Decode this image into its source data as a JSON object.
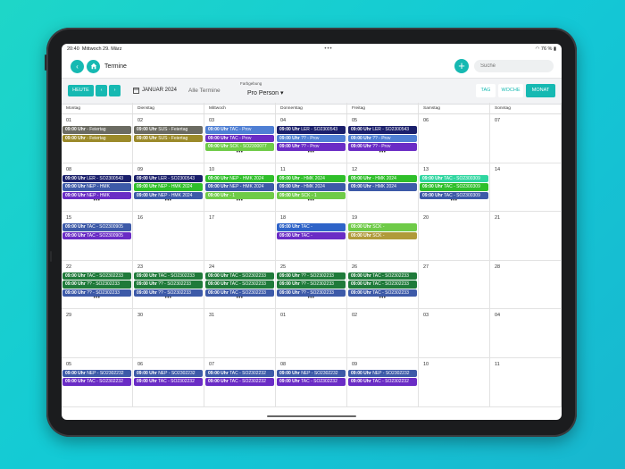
{
  "status": {
    "time": "20:40",
    "date": "Mittwoch 29. März",
    "dots": "•••",
    "battery": "76 %"
  },
  "header": {
    "title": "Termine",
    "search_placeholder": "Suche"
  },
  "toolbar": {
    "today": "HEUTE",
    "prev": "‹",
    "next": "›",
    "month": "JANUAR 2024",
    "all": "Alle Termine",
    "farbgebung_label": "Farbgebung",
    "farbgebung_value": "Pro Person",
    "views": [
      "TAG",
      "WOCHE",
      "MONAT"
    ],
    "active_view": "MONAT"
  },
  "weekdays": [
    "Montag",
    "Dienstag",
    "Mittwoch",
    "Donnerstag",
    "Freitag",
    "Samstag",
    "Sonntag"
  ],
  "colors": {
    "accent": "#16b9b2"
  },
  "weeks": [
    {
      "days": [
        {
          "num": "01",
          "events": [
            {
              "time": "09:00 Uhr",
              "text": "- Feiertag",
              "color": "#6b6b62"
            },
            {
              "time": "09:00 Uhr",
              "text": "- Feiertag",
              "color": "#9b8a2a"
            }
          ]
        },
        {
          "num": "02",
          "events": [
            {
              "time": "09:00 Uhr",
              "text": "SUS - Feiertag",
              "color": "#6b6b62"
            },
            {
              "time": "09:00 Uhr",
              "text": "SUS - Feiertag",
              "color": "#9b8a2a"
            }
          ]
        },
        {
          "num": "03",
          "events": [
            {
              "time": "09:00 Uhr",
              "text": "TAC - Prov",
              "color": "#4f7fd4"
            },
            {
              "time": "09:00 Uhr",
              "text": "TAC - Prov",
              "color": "#6a2cc5"
            },
            {
              "time": "09:00 Uhr",
              "text": "SCK - SO2300077",
              "color": "#6fcb48"
            }
          ],
          "more": "•••"
        },
        {
          "num": "04",
          "events": [
            {
              "time": "09:00 Uhr",
              "text": "LER - SO2300543",
              "color": "#1a1f6b"
            },
            {
              "time": "09:00 Uhr",
              "text": "?? - Prov",
              "color": "#4f7fd4"
            },
            {
              "time": "09:00 Uhr",
              "text": "?? - Prov",
              "color": "#6a2cc5"
            }
          ],
          "more": "•••"
        },
        {
          "num": "05",
          "events": [
            {
              "time": "09:00 Uhr",
              "text": "LER - SO2300543",
              "color": "#1a1f6b"
            },
            {
              "time": "09:00 Uhr",
              "text": "?? - Prov",
              "color": "#4f7fd4"
            },
            {
              "time": "09:00 Uhr",
              "text": "?? - Prov",
              "color": "#6a2cc5"
            }
          ],
          "more": "•••"
        },
        {
          "num": "06",
          "events": []
        },
        {
          "num": "07",
          "events": []
        }
      ]
    },
    {
      "days": [
        {
          "num": "08",
          "events": [
            {
              "time": "09:00 Uhr",
              "text": "LER - SO2300543",
              "color": "#1a1f6b"
            },
            {
              "time": "09:00 Uhr",
              "text": "NEP - HMK",
              "color": "#3d5aa8"
            },
            {
              "time": "09:00 Uhr",
              "text": "NEP - HMK",
              "color": "#6a2cc5"
            }
          ],
          "more": "•••"
        },
        {
          "num": "09",
          "events": [
            {
              "time": "09:00 Uhr",
              "text": "LER - SO2300543",
              "color": "#1a1f6b"
            },
            {
              "time": "09:00 Uhr",
              "text": "NEP - HMK 2024",
              "color": "#2fbf2a"
            },
            {
              "time": "09:00 Uhr",
              "text": "NEP - HMK 2024",
              "color": "#3d5aa8"
            }
          ],
          "more": "•••"
        },
        {
          "num": "10",
          "events": [
            {
              "time": "09:00 Uhr",
              "text": "NEP - HMK 2024",
              "color": "#2fbf2a"
            },
            {
              "time": "09:00 Uhr",
              "text": "NEP - HMK 2024",
              "color": "#3d5aa8"
            },
            {
              "time": "09:00 Uhr",
              "text": "- 1",
              "color": "#6fcb48"
            }
          ],
          "more": "•••"
        },
        {
          "num": "11",
          "events": [
            {
              "time": "09:00 Uhr",
              "text": "- HMK 2024",
              "color": "#2fbf2a"
            },
            {
              "time": "09:00 Uhr",
              "text": "- HMK 2024",
              "color": "#3d5aa8"
            },
            {
              "time": "09:00 Uhr",
              "text": "SCK - 1",
              "color": "#6fcb48"
            }
          ],
          "more": "•••"
        },
        {
          "num": "12",
          "events": [
            {
              "time": "09:00 Uhr",
              "text": "- HMK 2024",
              "color": "#2fbf2a"
            },
            {
              "time": "09:00 Uhr",
              "text": "- HMK 2024",
              "color": "#3d5aa8"
            }
          ]
        },
        {
          "num": "13",
          "events": [
            {
              "time": "09:00 Uhr",
              "text": "TAC - SO2300309",
              "color": "#2fd6a0"
            },
            {
              "time": "09:00 Uhr",
              "text": "TAC - SO2300309",
              "color": "#2fbf2a"
            },
            {
              "time": "09:00 Uhr",
              "text": "TAC - SO2300309",
              "color": "#3d5aa8"
            }
          ],
          "more": "•••"
        },
        {
          "num": "14",
          "events": []
        }
      ]
    },
    {
      "days": [
        {
          "num": "15",
          "events": [
            {
              "time": "09:00 Uhr",
              "text": "TAC - SO2300905",
              "color": "#3d5aa8"
            },
            {
              "time": "09:00 Uhr",
              "text": "TAC - SO2300905",
              "color": "#6a2cc5"
            }
          ]
        },
        {
          "num": "16",
          "events": []
        },
        {
          "num": "17",
          "events": []
        },
        {
          "num": "18",
          "events": [
            {
              "time": "09:00 Uhr",
              "text": "TAC -",
              "color": "#2e63c8"
            },
            {
              "time": "09:00 Uhr",
              "text": "TAC -",
              "color": "#6a2cc5"
            }
          ]
        },
        {
          "num": "19",
          "events": [
            {
              "time": "09:00 Uhr",
              "text": "SCK -",
              "color": "#6fcb48"
            },
            {
              "time": "09:00 Uhr",
              "text": "SCK -",
              "color": "#b09a3a"
            }
          ]
        },
        {
          "num": "20",
          "events": []
        },
        {
          "num": "21",
          "events": []
        }
      ]
    },
    {
      "days": [
        {
          "num": "22",
          "events": [
            {
              "time": "09:00 Uhr",
              "text": "TAC - SO2302233",
              "color": "#1f7a3a"
            },
            {
              "time": "09:00 Uhr",
              "text": "?? - SO2302233",
              "color": "#1f7a3a"
            },
            {
              "time": "09:00 Uhr",
              "text": "?? - SO2302233",
              "color": "#3d5aa8"
            }
          ],
          "more": "•••"
        },
        {
          "num": "23",
          "events": [
            {
              "time": "09:00 Uhr",
              "text": "TAC - SO2302233",
              "color": "#1f7a3a"
            },
            {
              "time": "09:00 Uhr",
              "text": "?? - SO2302233",
              "color": "#1f7a3a"
            },
            {
              "time": "09:00 Uhr",
              "text": "?? - SO2302233",
              "color": "#3d5aa8"
            }
          ],
          "more": "•••"
        },
        {
          "num": "24",
          "events": [
            {
              "time": "09:00 Uhr",
              "text": "TAC - SO2302233",
              "color": "#1f7a3a"
            },
            {
              "time": "09:00 Uhr",
              "text": "TAC - SO2302233",
              "color": "#1f7a3a"
            },
            {
              "time": "09:00 Uhr",
              "text": "TAC - SO2302233",
              "color": "#3d5aa8"
            }
          ],
          "more": "•••"
        },
        {
          "num": "25",
          "events": [
            {
              "time": "09:00 Uhr",
              "text": "?? - SO2302233",
              "color": "#1f7a3a"
            },
            {
              "time": "09:00 Uhr",
              "text": "?? - SO2302233",
              "color": "#1f7a3a"
            },
            {
              "time": "09:00 Uhr",
              "text": "?? - SO2302233",
              "color": "#3d5aa8"
            }
          ],
          "more": "•••"
        },
        {
          "num": "26",
          "events": [
            {
              "time": "09:00 Uhr",
              "text": "TAC - SO2302233",
              "color": "#1f7a3a"
            },
            {
              "time": "09:00 Uhr",
              "text": "TAC - SO2302233",
              "color": "#1f7a3a"
            },
            {
              "time": "09:00 Uhr",
              "text": "TAC - SO2302233",
              "color": "#3d5aa8"
            }
          ],
          "more": "•••"
        },
        {
          "num": "27",
          "events": []
        },
        {
          "num": "28",
          "events": []
        }
      ]
    },
    {
      "days": [
        {
          "num": "29",
          "events": []
        },
        {
          "num": "30",
          "events": []
        },
        {
          "num": "31",
          "events": []
        },
        {
          "num": "01",
          "events": []
        },
        {
          "num": "02",
          "events": []
        },
        {
          "num": "03",
          "events": []
        },
        {
          "num": "04",
          "events": []
        }
      ]
    },
    {
      "days": [
        {
          "num": "05",
          "events": [
            {
              "time": "09:00 Uhr",
              "text": "NEP - SO2302232",
              "color": "#3d5aa8"
            },
            {
              "time": "09:00 Uhr",
              "text": "TAC - SO2302232",
              "color": "#6a2cc5"
            }
          ]
        },
        {
          "num": "06",
          "events": [
            {
              "time": "09:00 Uhr",
              "text": "NEP - SO2302232",
              "color": "#3d5aa8"
            },
            {
              "time": "09:00 Uhr",
              "text": "TAC - SO2302232",
              "color": "#6a2cc5"
            }
          ]
        },
        {
          "num": "07",
          "events": [
            {
              "time": "09:00 Uhr",
              "text": "TAC - SO2302232",
              "color": "#3d5aa8"
            },
            {
              "time": "09:00 Uhr",
              "text": "TAC - SO2302232",
              "color": "#6a2cc5"
            }
          ]
        },
        {
          "num": "08",
          "events": [
            {
              "time": "09:00 Uhr",
              "text": "NEP - SO2302232",
              "color": "#3d5aa8"
            },
            {
              "time": "09:00 Uhr",
              "text": "TAC - SO2302232",
              "color": "#6a2cc5"
            }
          ]
        },
        {
          "num": "09",
          "events": [
            {
              "time": "09:00 Uhr",
              "text": "NEP - SO2302232",
              "color": "#3d5aa8"
            },
            {
              "time": "09:00 Uhr",
              "text": "TAC - SO2302232",
              "color": "#6a2cc5"
            }
          ]
        },
        {
          "num": "10",
          "events": []
        },
        {
          "num": "11",
          "events": []
        }
      ]
    }
  ]
}
